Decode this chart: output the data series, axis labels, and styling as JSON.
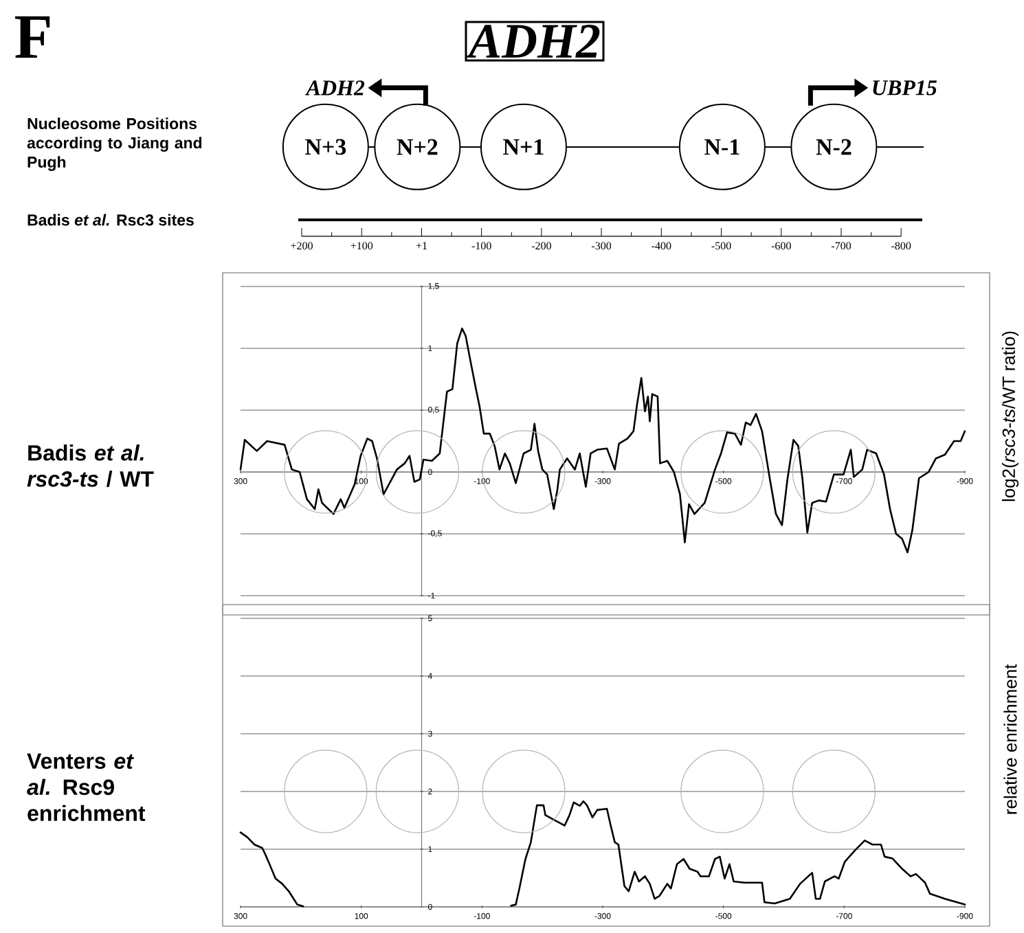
{
  "chart_data": [
    {
      "type": "other",
      "title": "ADH2",
      "annotations": [
        "F",
        "Nucleosome Positions according to Jiang and Pugh",
        "ADH2",
        "UBP15",
        "Badis *et al.* Rsc3 sites",
        "N+3",
        "N+2",
        "N+1",
        "N-1",
        "N-2",
        "+200",
        "+100",
        "+1",
        "-100",
        "-200",
        "-300",
        "-400",
        "-500",
        "-600",
        "-700",
        "-800"
      ]
    },
    {
      "type": "line",
      "title": "Badis *et al.* *rsc3-ts* / WT",
      "ylabel": "log2(*rsc3-ts*/WT ratio)",
      "xlim": [
        300,
        -900
      ],
      "xticks": [
        300,
        100,
        -100,
        -300,
        -500,
        -700,
        -900
      ],
      "ylim": [
        -1,
        1.5
      ],
      "yticks": [
        -1,
        {
          "value": -0.5,
          "label": "-0,5"
        },
        0,
        {
          "value": 0.5,
          "label": "0,5"
        },
        1,
        {
          "value": 1.5,
          "label": "1,5"
        }
      ],
      "grid": "y",
      "series": [
        {
          "color": "#000000",
          "x": [
            300,
            293,
            273,
            256,
            227,
            215,
            202,
            190,
            177,
            171,
            165,
            146,
            134,
            128,
            111,
            101,
            90,
            82,
            74,
            63,
            53,
            41,
            28,
            20,
            12,
            3,
            -3,
            -17,
            -30,
            -42,
            -51,
            -59,
            -67,
            -73,
            -80,
            -90,
            -96,
            -103,
            -113,
            -121,
            -129,
            -138,
            -146,
            -156,
            -169,
            -181,
            -187,
            -193,
            -200,
            -208,
            -219,
            -225,
            -229,
            -241,
            -254,
            -262,
            -272,
            -280,
            -291,
            -307,
            -320,
            -327,
            -341,
            -351,
            -357,
            -364,
            -370,
            -375,
            -378,
            -382,
            -391,
            -395,
            -407,
            -418,
            -428,
            -436,
            -443,
            -452,
            -469,
            -486,
            -496,
            -506,
            -519,
            -529,
            -537,
            -545,
            -554,
            -564,
            -577,
            -587,
            -597,
            -606,
            -616,
            -624,
            -631,
            -639,
            -647,
            -658,
            -670,
            -683,
            -699,
            -711,
            -716,
            -730,
            -738,
            -753,
            -766,
            -776,
            -786,
            -796,
            -805,
            -813,
            -824,
            -840,
            -852,
            -867,
            -882,
            -893,
            -900
          ],
          "values": [
            0.02,
            0.26,
            0.17,
            0.25,
            0.22,
            0.02,
            0.0,
            -0.22,
            -0.3,
            -0.14,
            -0.25,
            -0.34,
            -0.22,
            -0.29,
            -0.1,
            0.13,
            0.27,
            0.25,
            0.11,
            -0.18,
            -0.09,
            0.02,
            0.07,
            0.13,
            -0.08,
            -0.06,
            0.1,
            0.09,
            0.15,
            0.65,
            0.67,
            1.04,
            1.16,
            1.1,
            0.92,
            0.67,
            0.53,
            0.31,
            0.31,
            0.21,
            0.02,
            0.15,
            0.07,
            -0.09,
            0.15,
            0.18,
            0.39,
            0.17,
            0.02,
            -0.02,
            -0.3,
            -0.14,
            0.02,
            0.11,
            0.02,
            0.15,
            -0.12,
            0.15,
            0.18,
            0.19,
            0.02,
            0.23,
            0.27,
            0.33,
            0.55,
            0.76,
            0.49,
            0.61,
            0.41,
            0.63,
            0.61,
            0.07,
            0.09,
            0.0,
            -0.18,
            -0.57,
            -0.26,
            -0.34,
            -0.25,
            0.02,
            0.15,
            0.32,
            0.31,
            0.22,
            0.4,
            0.38,
            0.47,
            0.33,
            -0.06,
            -0.34,
            -0.43,
            -0.06,
            0.26,
            0.21,
            -0.06,
            -0.49,
            -0.25,
            -0.23,
            -0.24,
            -0.02,
            -0.02,
            0.18,
            -0.04,
            0.02,
            0.18,
            0.15,
            -0.02,
            -0.3,
            -0.5,
            -0.54,
            -0.65,
            -0.47,
            -0.05,
            0.0,
            0.11,
            0.14,
            0.25,
            0.25,
            0.33
          ]
        },
        {
          "type": "scatter",
          "marker": "circle",
          "color": "#b4b4b4",
          "x": [
            159,
            7,
            -169,
            -498,
            -683
          ],
          "values": [
            0,
            0,
            0,
            0,
            0
          ]
        }
      ]
    },
    {
      "type": "line",
      "title": "Venters *et al.* Rsc9 enrichment",
      "ylabel": "relative enrichment",
      "xlim": [
        300,
        -900
      ],
      "xticks": [
        300,
        100,
        -100,
        -300,
        -500,
        -700,
        -900
      ],
      "ylim": [
        0,
        5
      ],
      "yticks": [
        0,
        1,
        2,
        3,
        4,
        5
      ],
      "grid": "y",
      "series": [
        {
          "color": "#000000",
          "x": [
            300,
            289,
            277,
            264,
            259,
            252,
            242,
            231,
            220,
            212,
            206,
            196,
            0,
            -148,
            -156,
            -162,
            -172,
            -181,
            -187,
            -191,
            -202,
            -205,
            -219,
            -237,
            -245,
            -252,
            -262,
            -268,
            -274,
            -283,
            -291,
            -307,
            -313,
            -320,
            -326,
            -336,
            -343,
            -353,
            -360,
            -370,
            -378,
            -386,
            -394,
            -407,
            -413,
            -423,
            -434,
            -444,
            -457,
            -462,
            -476,
            -486,
            -494,
            -502,
            -510,
            -517,
            -535,
            -564,
            -568,
            -585,
            -610,
            -627,
            -647,
            -653,
            -660,
            -668,
            -684,
            -691,
            -701,
            -718,
            -734,
            -747,
            -761,
            -767,
            -780,
            -796,
            -810,
            -819,
            -834,
            -842,
            -867,
            -900
          ],
          "values": [
            1.29,
            1.21,
            1.08,
            1.02,
            0.91,
            0.74,
            0.49,
            0.4,
            0.27,
            0.14,
            0.04,
            0.01,
            null,
            0.02,
            0.04,
            0.32,
            0.83,
            1.12,
            1.51,
            1.76,
            1.76,
            1.59,
            1.51,
            1.41,
            1.59,
            1.81,
            1.75,
            1.83,
            1.76,
            1.55,
            1.68,
            1.7,
            1.42,
            1.12,
            1.08,
            0.36,
            0.27,
            0.61,
            0.44,
            0.53,
            0.4,
            0.14,
            0.19,
            0.4,
            0.32,
            0.74,
            0.83,
            0.66,
            0.61,
            0.53,
            0.53,
            0.83,
            0.87,
            0.49,
            0.74,
            0.44,
            0.42,
            0.42,
            0.08,
            0.06,
            0.14,
            0.4,
            0.59,
            0.14,
            0.14,
            0.44,
            0.53,
            0.49,
            0.78,
            0.98,
            1.15,
            1.08,
            1.08,
            0.87,
            0.84,
            0.66,
            0.53,
            0.57,
            0.42,
            0.23,
            0.14,
            0.04
          ]
        },
        {
          "type": "scatter",
          "marker": "circle",
          "color": "#b4b4b4",
          "x": [
            159,
            7,
            -169,
            -498,
            -683
          ],
          "values": [
            2,
            2,
            2,
            2,
            2
          ]
        }
      ]
    }
  ]
}
